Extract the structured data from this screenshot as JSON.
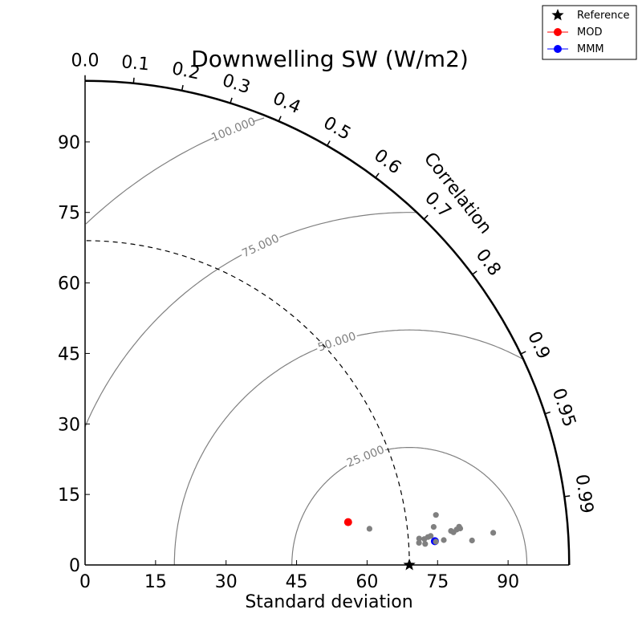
{
  "chart_data": {
    "type": "scatter",
    "subtype": "taylor-diagram",
    "title": "Downwelling SW (W/m2)",
    "xlabel": "Standard deviation",
    "corr_axis_label": "Correlation",
    "std_ticks": [
      "0",
      "15",
      "30",
      "45",
      "60",
      "75",
      "90"
    ],
    "std_range": [
      0,
      103
    ],
    "corr_ticks": [
      "0.0",
      "0.1",
      "0.2",
      "0.3",
      "0.4",
      "0.5",
      "0.6",
      "0.7",
      "0.8",
      "0.9",
      "0.95",
      "0.99"
    ],
    "rms_contours": [
      {
        "value": 25,
        "label": "25.000"
      },
      {
        "value": 50,
        "label": "50.000"
      },
      {
        "value": 75,
        "label": "75.000"
      },
      {
        "value": 100,
        "label": "100.000"
      }
    ],
    "reference": {
      "name": "Reference",
      "std": 69,
      "corr": 1.0,
      "color": "#000000",
      "marker": "star"
    },
    "reference_arc_std": 69,
    "series": [
      {
        "name": "MOD",
        "color": "#ff0000",
        "points": [
          {
            "std": 56.7,
            "corr": 0.987
          }
        ]
      },
      {
        "name": "MMM",
        "color": "#0000ff",
        "points": [
          {
            "std": 74.6,
            "corr": 0.9977
          }
        ]
      },
      {
        "color": "#808080",
        "points": [
          {
            "std": 61.0,
            "corr": 0.992
          },
          {
            "std": 75.4,
            "corr": 0.99
          },
          {
            "std": 74.6,
            "corr": 0.9941
          },
          {
            "std": 74.8,
            "corr": 0.9978
          },
          {
            "std": 73.2,
            "corr": 0.9967
          },
          {
            "std": 73.8,
            "corr": 0.9965
          },
          {
            "std": 71.3,
            "corr": 0.9969
          },
          {
            "std": 72.4,
            "corr": 0.9971
          },
          {
            "std": 71.2,
            "corr": 0.9978
          },
          {
            "std": 72.5,
            "corr": 0.9981
          },
          {
            "std": 76.5,
            "corr": 0.9976
          },
          {
            "std": 78.2,
            "corr": 0.9957
          },
          {
            "std": 78.7,
            "corr": 0.9961
          },
          {
            "std": 79.4,
            "corr": 0.9955
          },
          {
            "std": 80.0,
            "corr": 0.9948
          },
          {
            "std": 80.2,
            "corr": 0.9953
          },
          {
            "std": 82.5,
            "corr": 0.998
          },
          {
            "std": 87.1,
            "corr": 0.9969
          }
        ]
      }
    ],
    "legend": {
      "position": "top-right",
      "entries": [
        "Reference",
        "MOD",
        "MMM"
      ]
    }
  }
}
